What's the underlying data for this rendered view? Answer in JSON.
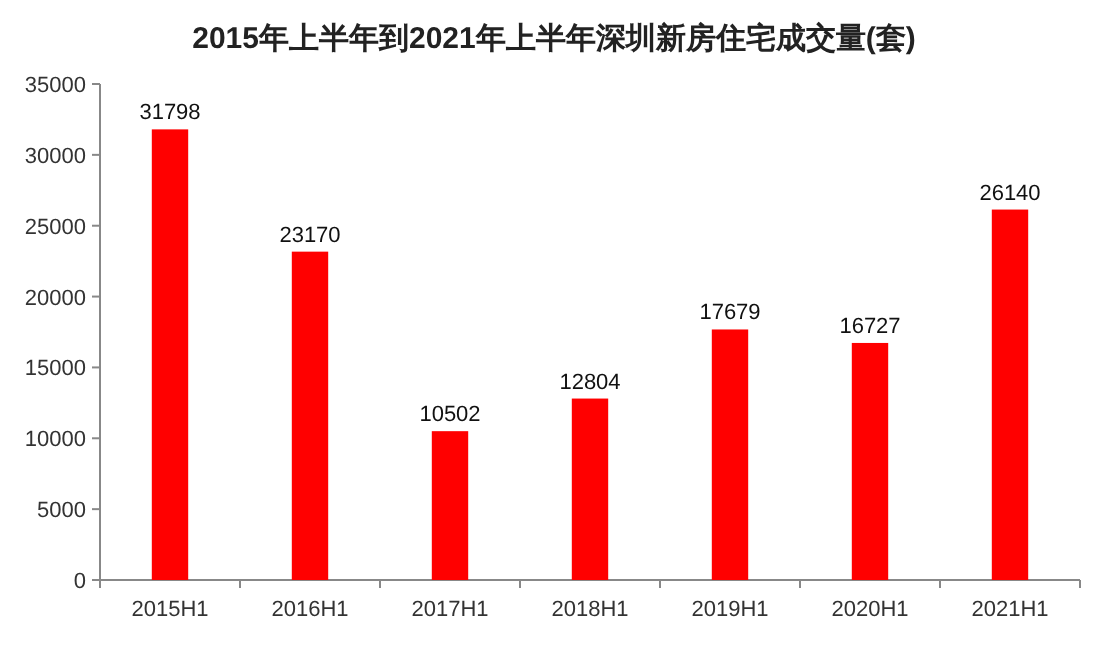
{
  "chart_data": {
    "type": "bar",
    "title": "2015年上半年到2021年上半年深圳新房住宅成交量(套)",
    "categories": [
      "2015H1",
      "2016H1",
      "2017H1",
      "2018H1",
      "2019H1",
      "2020H1",
      "2021H1"
    ],
    "values": [
      31798,
      23170,
      10502,
      12804,
      17679,
      16727,
      26140
    ],
    "color": "#ff0000",
    "ylim": [
      0,
      35000
    ],
    "yticks": [
      0,
      5000,
      10000,
      15000,
      20000,
      25000,
      30000,
      35000
    ],
    "data_labels": true
  }
}
